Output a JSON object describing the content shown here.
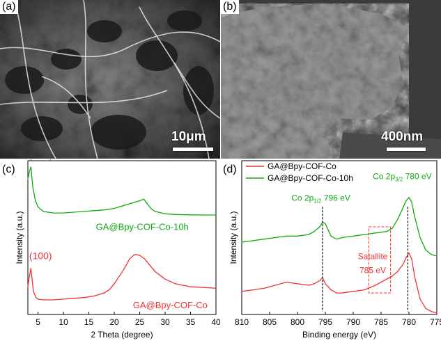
{
  "panels": {
    "a": {
      "tag": "(a)",
      "scale_label": "10μm"
    },
    "b": {
      "tag": "(b)",
      "scale_label": "400nm"
    },
    "c": {
      "tag": "(c)"
    },
    "d": {
      "tag": "(d)"
    }
  },
  "colors": {
    "green": "#11a811",
    "red": "#ee3333",
    "black": "#000000",
    "grey": "#808080"
  },
  "chart_data": [
    {
      "id": "c",
      "type": "line",
      "xlabel": "2 Theta (degree)",
      "ylabel": "Intensity (a.u.)",
      "xlim": [
        3,
        40
      ],
      "x_ticks": [
        5,
        10,
        15,
        20,
        25,
        30,
        35,
        40
      ],
      "series": [
        {
          "name": "GA@Bpy-COF-Co-10h",
          "color": "#11a811",
          "x": [
            3,
            3.3,
            3.6,
            3.8,
            4.0,
            4.5,
            5,
            6,
            8,
            10,
            12,
            14,
            16,
            18,
            20,
            21,
            22,
            23,
            24,
            25,
            25.8,
            26.5,
            27.2,
            28,
            30,
            32,
            35,
            38,
            40
          ],
          "y": [
            0.88,
            0.93,
            0.96,
            0.89,
            0.82,
            0.74,
            0.7,
            0.67,
            0.66,
            0.66,
            0.665,
            0.67,
            0.675,
            0.68,
            0.69,
            0.7,
            0.71,
            0.72,
            0.73,
            0.74,
            0.75,
            0.72,
            0.69,
            0.67,
            0.655,
            0.65,
            0.648,
            0.647,
            0.647
          ]
        },
        {
          "name": "GA@Bpy-COF-Co",
          "color": "#ee3333",
          "x": [
            3,
            3.3,
            3.6,
            3.8,
            4.1,
            4.6,
            5,
            6,
            8,
            10,
            12,
            14,
            16,
            18,
            19,
            20,
            21,
            22,
            23,
            24,
            25,
            26,
            27,
            28,
            30,
            32,
            35,
            38,
            40
          ],
          "y": [
            0.18,
            0.25,
            0.3,
            0.24,
            0.15,
            0.11,
            0.1,
            0.095,
            0.095,
            0.1,
            0.105,
            0.11,
            0.12,
            0.14,
            0.16,
            0.2,
            0.25,
            0.3,
            0.36,
            0.39,
            0.385,
            0.36,
            0.32,
            0.28,
            0.23,
            0.2,
            0.18,
            0.175,
            0.17
          ]
        }
      ],
      "annotations": [
        {
          "text": "(100)",
          "color": "#11a811",
          "x": 5.5,
          "y": 1.01
        },
        {
          "text": "(100)",
          "color": "#ee3333",
          "x": 5.5,
          "y": 0.36
        }
      ],
      "curve_labels": [
        {
          "text": "GA@Bpy-COF-Co-10h",
          "color": "#11a811",
          "x": 25.5,
          "y": 0.55
        },
        {
          "text": "GA@Bpy-COF-Co",
          "color": "#ee3333",
          "x": 31,
          "y": 0.04
        }
      ]
    },
    {
      "id": "d",
      "type": "line",
      "xlabel": "Binding energy (eV)",
      "ylabel": "Intensity (a.u.)",
      "xlim": [
        810,
        775
      ],
      "x_ticks": [
        810,
        805,
        800,
        795,
        790,
        785,
        780,
        775
      ],
      "legend": [
        {
          "text": "GA@Bpy-COF-Co",
          "color": "#ee3333"
        },
        {
          "text": "GA@Bpy-COF-Co-10h",
          "color": "#11a811"
        }
      ],
      "series": [
        {
          "name": "GA@Bpy-COF-Co-10h",
          "color": "#11a811",
          "x": [
            810,
            808,
            806,
            804,
            802,
            800,
            798,
            797,
            796,
            795.5,
            795,
            794.5,
            794,
            793,
            792,
            790,
            788,
            786,
            784,
            783,
            782,
            781,
            780.5,
            780,
            779.5,
            779,
            778,
            777,
            776,
            775
          ],
          "y": [
            0.47,
            0.48,
            0.49,
            0.5,
            0.51,
            0.51,
            0.52,
            0.54,
            0.57,
            0.6,
            0.59,
            0.55,
            0.51,
            0.49,
            0.5,
            0.51,
            0.52,
            0.53,
            0.54,
            0.56,
            0.62,
            0.7,
            0.74,
            0.76,
            0.73,
            0.64,
            0.5,
            0.42,
            0.39,
            0.38
          ]
        },
        {
          "name": "GA@Bpy-COF-Co",
          "color": "#ee3333",
          "x": [
            810,
            808,
            806,
            804,
            802,
            800,
            798,
            797,
            796,
            795.5,
            795,
            794,
            793,
            792,
            790,
            788,
            786,
            784,
            783,
            782,
            781,
            780.5,
            780,
            779.5,
            779,
            778,
            777,
            776,
            775
          ],
          "y": [
            0.15,
            0.16,
            0.17,
            0.19,
            0.21,
            0.2,
            0.19,
            0.2,
            0.22,
            0.24,
            0.2,
            0.16,
            0.14,
            0.14,
            0.15,
            0.16,
            0.19,
            0.23,
            0.25,
            0.28,
            0.33,
            0.37,
            0.4,
            0.36,
            0.25,
            0.1,
            0.04,
            0.02,
            0.01
          ]
        }
      ],
      "vlines": [
        795.5,
        780.2
      ],
      "dashed_box": {
        "x": [
          787.2,
          783.3
        ],
        "y": [
          0.14,
          0.57
        ],
        "color": "#ee3333"
      },
      "annotations": {
        "co_1_2": {
          "color": "#11a811",
          "x": 795.8,
          "y": 0.74
        },
        "co_3_2": {
          "color": "#11a811",
          "x": 781.2,
          "y": 0.88
        },
        "satallite": {
          "text": "Satallite",
          "color": "#ee3333",
          "x": 786.5,
          "y": 0.36
        },
        "satallite_ev": {
          "text": "785 eV",
          "color": "#ee3333",
          "x": 786.5,
          "y": 0.27
        }
      },
      "co_1_2_label": {
        "prefix": "Co 2p",
        "sub": "1/2",
        "suffix": " 796 eV"
      },
      "co_3_2_label": {
        "prefix": "Co 2p",
        "sub": "3/2",
        "suffix": " 780 eV"
      }
    }
  ]
}
